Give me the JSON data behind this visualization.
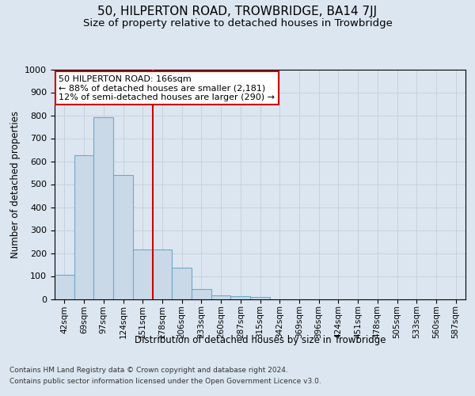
{
  "title": "50, HILPERTON ROAD, TROWBRIDGE, BA14 7JJ",
  "subtitle": "Size of property relative to detached houses in Trowbridge",
  "xlabel": "Distribution of detached houses by size in Trowbridge",
  "ylabel": "Number of detached properties",
  "bar_labels": [
    "42sqm",
    "69sqm",
    "97sqm",
    "124sqm",
    "151sqm",
    "178sqm",
    "206sqm",
    "233sqm",
    "260sqm",
    "287sqm",
    "315sqm",
    "342sqm",
    "369sqm",
    "396sqm",
    "424sqm",
    "451sqm",
    "478sqm",
    "505sqm",
    "533sqm",
    "560sqm",
    "587sqm"
  ],
  "bar_values": [
    105,
    625,
    790,
    540,
    215,
    215,
    135,
    42,
    15,
    12,
    10,
    0,
    0,
    0,
    0,
    0,
    0,
    0,
    0,
    0,
    0
  ],
  "bar_color": "#c9d9e8",
  "bar_edgecolor": "#6fa8c8",
  "property_label": "50 HILPERTON ROAD: 166sqm",
  "annotation_line1": "← 88% of detached houses are smaller (2,181)",
  "annotation_line2": "12% of semi-detached houses are larger (290) →",
  "vline_x": 4.5,
  "ylim": [
    0,
    1000
  ],
  "yticks": [
    0,
    100,
    200,
    300,
    400,
    500,
    600,
    700,
    800,
    900,
    1000
  ],
  "grid_color": "#c8d0dc",
  "background_color": "#dce6f0",
  "plot_bg_color": "#dce6f0",
  "footer_line1": "Contains HM Land Registry data © Crown copyright and database right 2024.",
  "footer_line2": "Contains public sector information licensed under the Open Government Licence v3.0.",
  "title_fontsize": 11,
  "subtitle_fontsize": 9.5,
  "xlabel_fontsize": 8.5,
  "ylabel_fontsize": 8.5,
  "annotation_box_color": "#ffffff",
  "annotation_box_edgecolor": "#cc0000",
  "vline_color": "#cc0000",
  "footer_fontsize": 6.5
}
